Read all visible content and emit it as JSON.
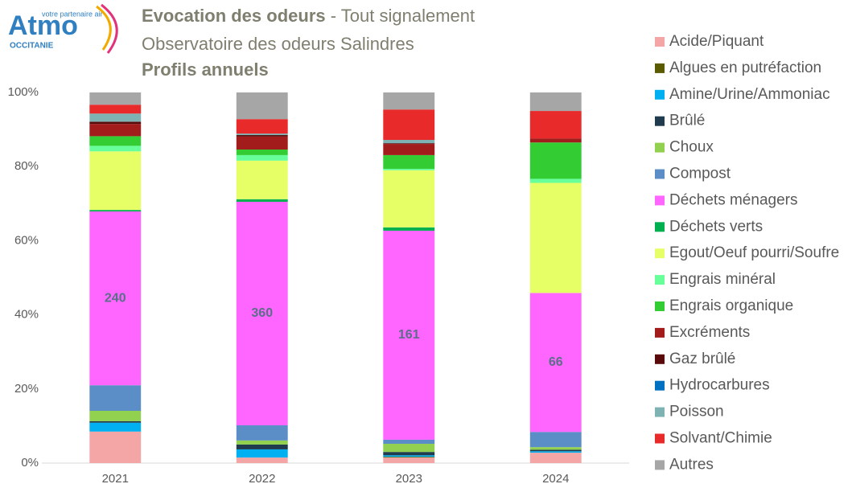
{
  "logo": {
    "name": "Atmo",
    "tagline": "votre partenaire air",
    "region": "OCCITANIE"
  },
  "chart_data": {
    "type": "stacked_bar",
    "title": "Evocation des odeurs",
    "title_suffix": " - Tout signalement",
    "subtitle": "Observatoire des odeurs Salindres",
    "subtitle2": "Profils annuels",
    "categories": [
      "2021",
      "2022",
      "2023",
      "2024"
    ],
    "ylim": [
      0,
      100
    ],
    "yticks": [
      {
        "value": 0,
        "label": "0%"
      },
      {
        "value": 20,
        "label": "20%"
      },
      {
        "value": 40,
        "label": "40%"
      },
      {
        "value": 60,
        "label": "60%"
      },
      {
        "value": 80,
        "label": "80%"
      },
      {
        "value": 100,
        "label": "100%"
      }
    ],
    "grid": false,
    "legend": "right",
    "series": [
      {
        "name": "Acide/Piquant",
        "color": "#f4a6a6",
        "values": [
          8.5,
          1.5,
          1.5,
          2.8
        ]
      },
      {
        "name": "Algues en putréfaction",
        "color": "#5a5a00",
        "values": [
          0,
          0,
          0.2,
          0
        ]
      },
      {
        "name": "Amine/Urine/Ammoniac",
        "color": "#00b0f0",
        "values": [
          2.4,
          2.2,
          0.4,
          0.4
        ]
      },
      {
        "name": "Brûlé",
        "color": "#1f3b4d",
        "values": [
          0.4,
          1.3,
          0.9,
          0.4
        ]
      },
      {
        "name": "Choux",
        "color": "#92d050",
        "values": [
          2.8,
          1.1,
          2.2,
          0.7
        ]
      },
      {
        "name": "Compost",
        "color": "#5b8ec6",
        "values": [
          6.9,
          4.1,
          1.1,
          4.1
        ]
      },
      {
        "name": "Déchets ménagers",
        "color": "#ff66ff",
        "values": [
          46.9,
          60.3,
          56.4,
          37.5
        ],
        "data_labels": [
          "240",
          "360",
          "161",
          "66"
        ]
      },
      {
        "name": "Déchets verts",
        "color": "#00b050",
        "values": [
          0.4,
          0.7,
          0.9,
          0
        ]
      },
      {
        "name": "Egout/Oeuf pourri/Soufre",
        "color": "#e6ff66",
        "values": [
          15.8,
          10.4,
          15.4,
          29.7
        ]
      },
      {
        "name": "Engrais minéral",
        "color": "#66ff99",
        "values": [
          1.5,
          1.5,
          0.4,
          1.1
        ]
      },
      {
        "name": "Engrais organique",
        "color": "#33cc33",
        "values": [
          2.6,
          1.5,
          3.7,
          9.8
        ]
      },
      {
        "name": "Excréments",
        "color": "#a31c1c",
        "values": [
          3.3,
          3.5,
          3.0,
          1.1
        ]
      },
      {
        "name": "Gaz brûlé",
        "color": "#5a0a0a",
        "values": [
          0.6,
          0.4,
          0.2,
          0
        ]
      },
      {
        "name": "Hydrocarbures",
        "color": "#0070c0",
        "values": [
          0,
          0,
          0,
          0
        ]
      },
      {
        "name": "Poisson",
        "color": "#7fb2b2",
        "values": [
          2.2,
          0.4,
          0.9,
          0
        ]
      },
      {
        "name": "Solvant/Chimie",
        "color": "#e82a2a",
        "values": [
          2.4,
          3.9,
          8.2,
          7.4
        ]
      },
      {
        "name": "Autres",
        "color": "#a6a6a6",
        "values": [
          3.3,
          7.2,
          4.6,
          5.0
        ]
      }
    ]
  }
}
